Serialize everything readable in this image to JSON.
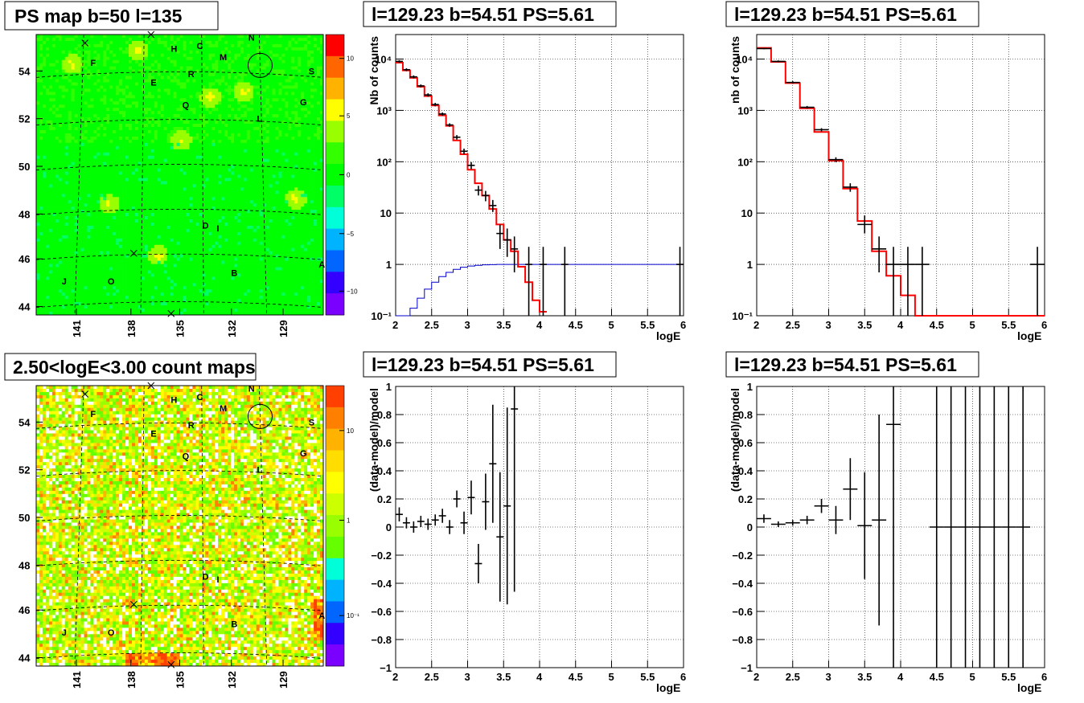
{
  "chart_data": [
    {
      "id": "ps-map",
      "type": "heatmap",
      "title": "PS map b=50 l=135",
      "x_ticks": [
        "141",
        "138",
        "135",
        "132",
        "129"
      ],
      "y_ticks": [
        "44",
        "46",
        "48",
        "50",
        "52",
        "54"
      ],
      "zlim": [
        -12,
        12
      ],
      "colorbar_ticks": [
        "10",
        "5",
        "0",
        "−5",
        "−10"
      ],
      "source_labels": [
        "A",
        "B",
        "C",
        "D",
        "E",
        "F",
        "G",
        "H",
        "I",
        "J",
        "L",
        "M",
        "N",
        "O",
        "Q",
        "R",
        "S"
      ],
      "palette": [
        "#7a00ff",
        "#3300ff",
        "#0066ff",
        "#00b3ff",
        "#00ffd9",
        "#00ff66",
        "#00ff00",
        "#33ff00",
        "#99ff00",
        "#ffff00",
        "#ffb300",
        "#ff6600",
        "#ff0000"
      ]
    },
    {
      "id": "spectrum-left",
      "type": "line",
      "title": "l=129.23 b=54.51 PS=5.61",
      "xlabel": "logE",
      "ylabel": "Nb of counts",
      "xlim": [
        2,
        6
      ],
      "ylim": [
        0.1,
        30000
      ],
      "log_y": true,
      "x_ticks": [
        "2",
        "2.5",
        "3",
        "3.5",
        "4",
        "4.5",
        "5",
        "5.5",
        "6"
      ],
      "y_ticks": [
        "10⁻¹",
        "1",
        "10",
        "10²",
        "10³",
        "10⁴"
      ],
      "grid": true,
      "data_points": [
        {
          "x": 2.05,
          "y": 9000,
          "lo": 8500,
          "hi": 9500
        },
        {
          "x": 2.15,
          "y": 6200,
          "lo": 5800,
          "hi": 6600
        },
        {
          "x": 2.25,
          "y": 4500,
          "lo": 4200,
          "hi": 4800
        },
        {
          "x": 2.35,
          "y": 3000,
          "lo": 2800,
          "hi": 3200
        },
        {
          "x": 2.45,
          "y": 2000,
          "lo": 1850,
          "hi": 2150
        },
        {
          "x": 2.55,
          "y": 1300,
          "lo": 1200,
          "hi": 1400
        },
        {
          "x": 2.65,
          "y": 850,
          "lo": 790,
          "hi": 910
        },
        {
          "x": 2.75,
          "y": 520,
          "lo": 480,
          "hi": 560
        },
        {
          "x": 2.85,
          "y": 300,
          "lo": 270,
          "hi": 330
        },
        {
          "x": 2.95,
          "y": 160,
          "lo": 140,
          "hi": 180
        },
        {
          "x": 3.05,
          "y": 85,
          "lo": 72,
          "hi": 98
        },
        {
          "x": 3.15,
          "y": 28,
          "lo": 22,
          "hi": 34
        },
        {
          "x": 3.25,
          "y": 22,
          "lo": 17,
          "hi": 27
        },
        {
          "x": 3.35,
          "y": 14,
          "lo": 10.5,
          "hi": 18
        },
        {
          "x": 3.45,
          "y": 4,
          "lo": 2,
          "hi": 6
        },
        {
          "x": 3.55,
          "y": 3,
          "lo": 1.4,
          "hi": 5
        },
        {
          "x": 3.65,
          "y": 2,
          "lo": 0.7,
          "hi": 3.5
        },
        {
          "x": 3.85,
          "y": 1,
          "lo": 0.1,
          "hi": 2.2
        },
        {
          "x": 4.05,
          "y": 1,
          "lo": 0.1,
          "hi": 2.2
        },
        {
          "x": 4.35,
          "y": 1,
          "lo": 0.1,
          "hi": 2.2
        },
        {
          "x": 5.95,
          "y": 1,
          "lo": 0.1,
          "hi": 2.2
        }
      ],
      "model_red": {
        "edges": [
          2.0,
          2.1,
          2.2,
          2.3,
          2.4,
          2.5,
          2.6,
          2.7,
          2.8,
          2.9,
          3.0,
          3.1,
          3.2,
          3.3,
          3.4,
          3.5,
          3.6,
          3.7,
          3.8,
          3.9,
          4.0,
          4.1
        ],
        "values": [
          8500,
          6000,
          4300,
          2900,
          1900,
          1250,
          800,
          500,
          260,
          140,
          70,
          38,
          22,
          12,
          6,
          3,
          1.8,
          0.9,
          0.45,
          0.2,
          0.12
        ]
      },
      "model_blue": {
        "edges": [
          2.0,
          2.1,
          2.2,
          2.3,
          2.4,
          2.5,
          2.6,
          2.7,
          2.8,
          2.9,
          3.0,
          3.1,
          3.2,
          3.3,
          3.4,
          3.5,
          6.0
        ],
        "values": [
          0.05,
          0.08,
          0.14,
          0.22,
          0.33,
          0.45,
          0.58,
          0.7,
          0.8,
          0.88,
          0.93,
          0.96,
          0.98,
          0.99,
          1.0,
          1.0
        ]
      }
    },
    {
      "id": "spectrum-right",
      "type": "line",
      "title": "l=129.23 b=54.51 PS=5.61",
      "xlabel": "logE",
      "ylabel": "nb of counts",
      "xlim": [
        2,
        6
      ],
      "ylim": [
        0.1,
        30000
      ],
      "log_y": true,
      "x_ticks": [
        "2",
        "2.5",
        "3",
        "3.5",
        "4",
        "4.5",
        "5",
        "5.5",
        "6"
      ],
      "y_ticks": [
        "10⁻¹",
        "1",
        "10",
        "10²",
        "10³",
        "10⁴"
      ],
      "grid": true,
      "data_points": [
        {
          "x": 2.1,
          "y": 16000,
          "lo": 15500,
          "hi": 16500
        },
        {
          "x": 2.3,
          "y": 9000,
          "lo": 8600,
          "hi": 9400
        },
        {
          "x": 2.5,
          "y": 3500,
          "lo": 3300,
          "hi": 3700
        },
        {
          "x": 2.7,
          "y": 1150,
          "lo": 1080,
          "hi": 1220
        },
        {
          "x": 2.9,
          "y": 420,
          "lo": 390,
          "hi": 450
        },
        {
          "x": 3.1,
          "y": 110,
          "lo": 98,
          "hi": 122
        },
        {
          "x": 3.3,
          "y": 32,
          "lo": 26,
          "hi": 38
        },
        {
          "x": 3.5,
          "y": 6,
          "lo": 4,
          "hi": 9
        },
        {
          "x": 3.7,
          "y": 2,
          "lo": 0.7,
          "hi": 3.5
        },
        {
          "x": 3.9,
          "y": 1,
          "lo": 0.1,
          "hi": 2.2
        },
        {
          "x": 4.1,
          "y": 1,
          "lo": 0.1,
          "hi": 2.2
        },
        {
          "x": 4.3,
          "y": 1,
          "lo": 0.1,
          "hi": 2.2
        },
        {
          "x": 5.9,
          "y": 1,
          "lo": 0.1,
          "hi": 2.2
        }
      ],
      "model_red": {
        "edges": [
          2.0,
          2.2,
          2.4,
          2.6,
          2.8,
          3.0,
          3.2,
          3.4,
          3.6,
          3.8,
          4.0,
          4.2,
          4.4,
          6.0
        ],
        "values": [
          16500,
          8800,
          3400,
          1100,
          380,
          105,
          30,
          7,
          1.8,
          0.6,
          0.25,
          0.1,
          0.1
        ]
      }
    },
    {
      "id": "count-map",
      "type": "heatmap",
      "title": "2.50<logE<3.00 count maps",
      "x_ticks": [
        "141",
        "138",
        "135",
        "132",
        "129"
      ],
      "y_ticks": [
        "44",
        "46",
        "48",
        "50",
        "52",
        "54"
      ],
      "colorbar_ticks": [
        "10",
        "1",
        "10⁻¹"
      ],
      "source_labels": [
        "A",
        "B",
        "C",
        "D",
        "E",
        "F",
        "G",
        "H",
        "I",
        "J",
        "L",
        "M",
        "N",
        "O",
        "Q",
        "R",
        "S"
      ],
      "palette": [
        "#ffffff",
        "#66ff00",
        "#99ff00",
        "#ccff00",
        "#ffff00",
        "#ffdd00",
        "#ffb300",
        "#ff8000",
        "#ff4000"
      ]
    },
    {
      "id": "residual-left",
      "type": "scatter",
      "title": "l=129.23 b=54.51 PS=5.61",
      "xlabel": "logE",
      "ylabel": "(data-model)/model",
      "xlim": [
        2,
        6
      ],
      "ylim": [
        -1,
        1
      ],
      "x_ticks": [
        "2",
        "2.5",
        "3",
        "3.5",
        "4",
        "4.5",
        "5",
        "5.5",
        "6"
      ],
      "y_ticks": [
        "−1",
        "−0.8",
        "−0.6",
        "−0.4",
        "−0.2",
        "0",
        "0.2",
        "0.4",
        "0.6",
        "0.8",
        "1"
      ],
      "grid": true,
      "points": [
        {
          "x": 2.05,
          "y": 0.09,
          "err": 0.05
        },
        {
          "x": 2.15,
          "y": 0.03,
          "err": 0.04
        },
        {
          "x": 2.25,
          "y": 0.0,
          "err": 0.04
        },
        {
          "x": 2.35,
          "y": 0.04,
          "err": 0.04
        },
        {
          "x": 2.45,
          "y": 0.02,
          "err": 0.04
        },
        {
          "x": 2.55,
          "y": 0.05,
          "err": 0.04
        },
        {
          "x": 2.65,
          "y": 0.08,
          "err": 0.05
        },
        {
          "x": 2.75,
          "y": 0.0,
          "err": 0.05
        },
        {
          "x": 2.85,
          "y": 0.2,
          "err": 0.06
        },
        {
          "x": 2.95,
          "y": 0.03,
          "err": 0.08
        },
        {
          "x": 3.05,
          "y": 0.21,
          "err": 0.12
        },
        {
          "x": 3.15,
          "y": -0.26,
          "err": 0.14
        },
        {
          "x": 3.25,
          "y": 0.18,
          "err": 0.2
        },
        {
          "x": 3.35,
          "y": 0.45,
          "err": 0.42
        },
        {
          "x": 3.45,
          "y": -0.07,
          "err": 0.46
        },
        {
          "x": 3.55,
          "y": 0.15,
          "err": 0.7
        },
        {
          "x": 3.65,
          "y": 0.84,
          "err": 1.3
        }
      ]
    },
    {
      "id": "residual-right",
      "type": "scatter",
      "title": "l=129.23 b=54.51 PS=5.61",
      "xlabel": "logE",
      "ylabel": "(data-model)/model",
      "xlim": [
        2,
        6
      ],
      "ylim": [
        -1,
        1
      ],
      "x_ticks": [
        "2",
        "2.5",
        "3",
        "3.5",
        "4",
        "4.5",
        "5",
        "5.5",
        "6"
      ],
      "y_ticks": [
        "−1",
        "−0.8",
        "−0.6",
        "−0.4",
        "−0.2",
        "0",
        "0.2",
        "0.4",
        "0.6",
        "0.8",
        "1"
      ],
      "grid": true,
      "points": [
        {
          "x": 2.1,
          "y": 0.06,
          "err": 0.03
        },
        {
          "x": 2.3,
          "y": 0.02,
          "err": 0.02
        },
        {
          "x": 2.5,
          "y": 0.03,
          "err": 0.02
        },
        {
          "x": 2.7,
          "y": 0.05,
          "err": 0.03
        },
        {
          "x": 2.9,
          "y": 0.15,
          "err": 0.05
        },
        {
          "x": 3.1,
          "y": 0.05,
          "err": 0.1
        },
        {
          "x": 3.3,
          "y": 0.27,
          "err": 0.22
        },
        {
          "x": 3.5,
          "y": 0.01,
          "err": 0.38
        },
        {
          "x": 3.7,
          "y": 0.05,
          "err": 0.75
        },
        {
          "x": 3.9,
          "y": 0.73,
          "err": 2.0
        },
        {
          "x": 4.5,
          "y": 0.0,
          "err": 2.0
        },
        {
          "x": 4.7,
          "y": 0.0,
          "err": 2.0
        },
        {
          "x": 4.9,
          "y": 0.0,
          "err": 2.0
        },
        {
          "x": 5.1,
          "y": 0.0,
          "err": 2.0
        },
        {
          "x": 5.3,
          "y": 0.0,
          "err": 2.0
        },
        {
          "x": 5.5,
          "y": 0.0,
          "err": 2.0
        },
        {
          "x": 5.7,
          "y": 0.0,
          "err": 2.0
        }
      ]
    }
  ]
}
